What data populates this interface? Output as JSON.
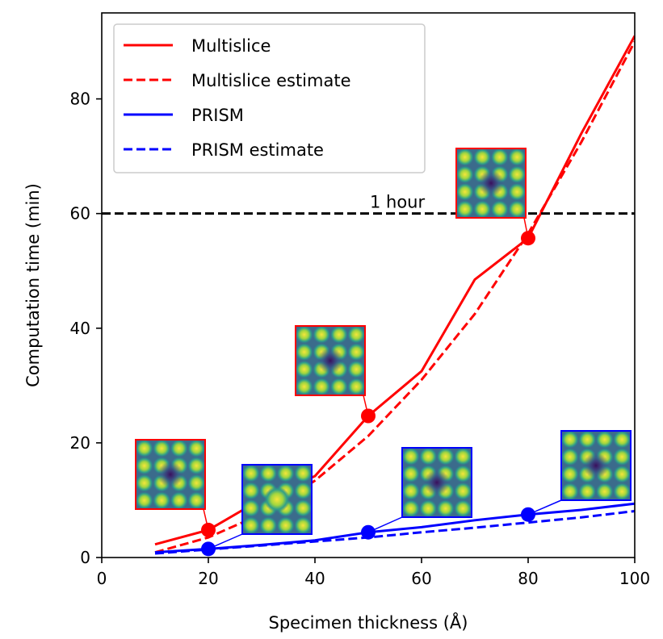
{
  "chart_data": {
    "type": "line",
    "xlabel": "Specimen thickness (Å)",
    "ylabel": "Computation time (min)",
    "xlim": [
      0,
      100
    ],
    "ylim": [
      0,
      95
    ],
    "xticks": [
      0,
      20,
      40,
      60,
      80,
      100
    ],
    "yticks": [
      0,
      20,
      40,
      60,
      80
    ],
    "legend_position": "top-left",
    "grid": false,
    "series": [
      {
        "name": "Multislice",
        "color": "#ff0000",
        "style": "solid",
        "x": [
          10,
          20,
          30,
          40,
          50,
          60,
          70,
          80,
          90,
          100
        ],
        "y": [
          2.3,
          4.8,
          10.2,
          14.2,
          24.7,
          32.5,
          48.5,
          55.7,
          74,
          91
        ]
      },
      {
        "name": "Multislice estimate",
        "color": "#ff0000",
        "style": "dashed",
        "x": [
          10,
          20,
          30,
          40,
          50,
          60,
          70,
          80,
          90,
          100
        ],
        "y": [
          0.9,
          3.5,
          7.6,
          13.4,
          21.2,
          31.0,
          42.5,
          56.5,
          72.5,
          90
        ]
      },
      {
        "name": "PRISM",
        "color": "#0000ff",
        "style": "solid",
        "x": [
          10,
          20,
          30,
          40,
          50,
          60,
          70,
          80,
          90,
          100
        ],
        "y": [
          0.9,
          1.5,
          2.2,
          3.0,
          4.4,
          5.3,
          6.5,
          7.5,
          8.3,
          9.4
        ]
      },
      {
        "name": "PRISM estimate",
        "color": "#0000ff",
        "style": "dashed",
        "x": [
          10,
          20,
          30,
          40,
          50,
          60,
          70,
          80,
          90,
          100
        ],
        "y": [
          0.7,
          1.4,
          2.1,
          2.8,
          3.5,
          4.4,
          5.2,
          6.1,
          7.0,
          8.1
        ]
      }
    ],
    "markers": [
      {
        "series": "Multislice",
        "x": 20,
        "y": 4.8,
        "color": "#ff0000"
      },
      {
        "series": "Multislice",
        "x": 50,
        "y": 24.7,
        "color": "#ff0000"
      },
      {
        "series": "Multislice",
        "x": 80,
        "y": 55.7,
        "color": "#ff0000"
      },
      {
        "series": "PRISM",
        "x": 20,
        "y": 1.5,
        "color": "#0000ff"
      },
      {
        "series": "PRISM",
        "x": 50,
        "y": 4.4,
        "color": "#0000ff"
      },
      {
        "series": "PRISM",
        "x": 80,
        "y": 7.5,
        "color": "#0000ff"
      }
    ],
    "reference_line": {
      "y": 60,
      "label": "1 hour",
      "color": "#000000",
      "style": "dashed"
    },
    "insets": [
      {
        "anchor_x": 20,
        "anchor_y": 4.8,
        "border": "#ff0000",
        "pattern": "dark-center"
      },
      {
        "anchor_x": 50,
        "anchor_y": 24.7,
        "border": "#ff0000",
        "pattern": "dark-center"
      },
      {
        "anchor_x": 80,
        "anchor_y": 55.7,
        "border": "#ff0000",
        "pattern": "dark-center"
      },
      {
        "anchor_x": 20,
        "anchor_y": 1.5,
        "border": "#0000ff",
        "pattern": "bright-center"
      },
      {
        "anchor_x": 50,
        "anchor_y": 4.4,
        "border": "#0000ff",
        "pattern": "dark-center"
      },
      {
        "anchor_x": 80,
        "anchor_y": 7.5,
        "border": "#0000ff",
        "pattern": "dark-center"
      }
    ]
  }
}
